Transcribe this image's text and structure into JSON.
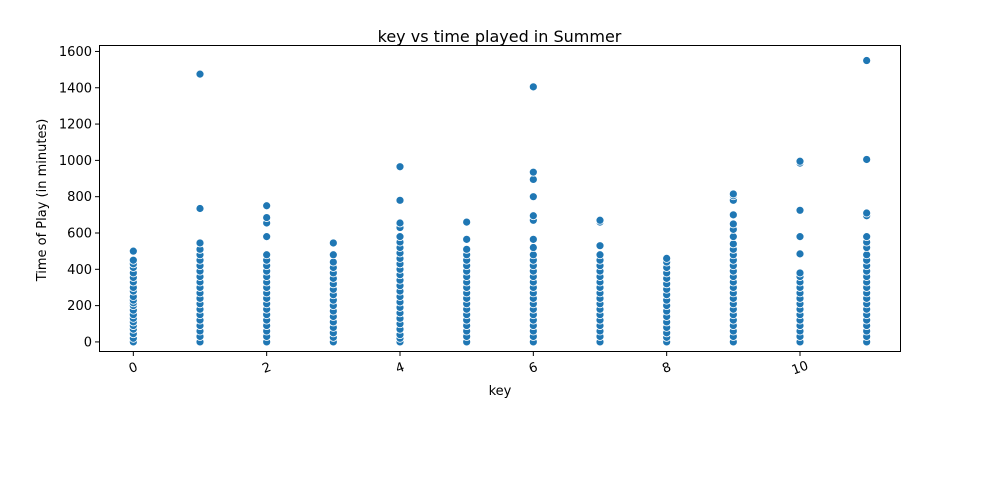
{
  "chart_data": {
    "type": "scatter",
    "title": "key vs time played in Summer",
    "xlabel": "key",
    "ylabel": "Time of Play (in minutes)",
    "xlim": [
      -0.5,
      11.5
    ],
    "ylim": [
      -50,
      1630
    ],
    "xticks": [
      0,
      2,
      4,
      6,
      8,
      10
    ],
    "yticks": [
      0,
      200,
      400,
      600,
      800,
      1000,
      1200,
      1400,
      1600
    ],
    "grid": false,
    "legend": "none",
    "marker_color": "#1f77b4",
    "points": [
      {
        "x": 0,
        "y": 0
      },
      {
        "x": 0,
        "y": 20
      },
      {
        "x": 0,
        "y": 45
      },
      {
        "x": 0,
        "y": 70
      },
      {
        "x": 0,
        "y": 90
      },
      {
        "x": 0,
        "y": 110
      },
      {
        "x": 0,
        "y": 130
      },
      {
        "x": 0,
        "y": 150
      },
      {
        "x": 0,
        "y": 175
      },
      {
        "x": 0,
        "y": 200
      },
      {
        "x": 0,
        "y": 215
      },
      {
        "x": 0,
        "y": 230
      },
      {
        "x": 0,
        "y": 250
      },
      {
        "x": 0,
        "y": 280
      },
      {
        "x": 0,
        "y": 300
      },
      {
        "x": 0,
        "y": 330
      },
      {
        "x": 0,
        "y": 355
      },
      {
        "x": 0,
        "y": 380
      },
      {
        "x": 0,
        "y": 410
      },
      {
        "x": 0,
        "y": 430
      },
      {
        "x": 0,
        "y": 450
      },
      {
        "x": 0,
        "y": 500
      },
      {
        "x": 1,
        "y": 0
      },
      {
        "x": 1,
        "y": 30
      },
      {
        "x": 1,
        "y": 60
      },
      {
        "x": 1,
        "y": 90
      },
      {
        "x": 1,
        "y": 120
      },
      {
        "x": 1,
        "y": 150
      },
      {
        "x": 1,
        "y": 180
      },
      {
        "x": 1,
        "y": 210
      },
      {
        "x": 1,
        "y": 240
      },
      {
        "x": 1,
        "y": 270
      },
      {
        "x": 1,
        "y": 300
      },
      {
        "x": 1,
        "y": 330
      },
      {
        "x": 1,
        "y": 360
      },
      {
        "x": 1,
        "y": 390
      },
      {
        "x": 1,
        "y": 420
      },
      {
        "x": 1,
        "y": 450
      },
      {
        "x": 1,
        "y": 480
      },
      {
        "x": 1,
        "y": 510
      },
      {
        "x": 1,
        "y": 545
      },
      {
        "x": 1,
        "y": 735
      },
      {
        "x": 1,
        "y": 1475
      },
      {
        "x": 2,
        "y": 0
      },
      {
        "x": 2,
        "y": 30
      },
      {
        "x": 2,
        "y": 60
      },
      {
        "x": 2,
        "y": 90
      },
      {
        "x": 2,
        "y": 120
      },
      {
        "x": 2,
        "y": 150
      },
      {
        "x": 2,
        "y": 180
      },
      {
        "x": 2,
        "y": 210
      },
      {
        "x": 2,
        "y": 240
      },
      {
        "x": 2,
        "y": 270
      },
      {
        "x": 2,
        "y": 300
      },
      {
        "x": 2,
        "y": 330
      },
      {
        "x": 2,
        "y": 360
      },
      {
        "x": 2,
        "y": 390
      },
      {
        "x": 2,
        "y": 420
      },
      {
        "x": 2,
        "y": 450
      },
      {
        "x": 2,
        "y": 480
      },
      {
        "x": 2,
        "y": 580
      },
      {
        "x": 2,
        "y": 655
      },
      {
        "x": 2,
        "y": 685
      },
      {
        "x": 2,
        "y": 750
      },
      {
        "x": 3,
        "y": 0
      },
      {
        "x": 3,
        "y": 25
      },
      {
        "x": 3,
        "y": 50
      },
      {
        "x": 3,
        "y": 80
      },
      {
        "x": 3,
        "y": 110
      },
      {
        "x": 3,
        "y": 140
      },
      {
        "x": 3,
        "y": 170
      },
      {
        "x": 3,
        "y": 200
      },
      {
        "x": 3,
        "y": 230
      },
      {
        "x": 3,
        "y": 260
      },
      {
        "x": 3,
        "y": 290
      },
      {
        "x": 3,
        "y": 320
      },
      {
        "x": 3,
        "y": 350
      },
      {
        "x": 3,
        "y": 380
      },
      {
        "x": 3,
        "y": 410
      },
      {
        "x": 3,
        "y": 440
      },
      {
        "x": 3,
        "y": 480
      },
      {
        "x": 3,
        "y": 545
      },
      {
        "x": 4,
        "y": 0
      },
      {
        "x": 4,
        "y": 20
      },
      {
        "x": 4,
        "y": 40
      },
      {
        "x": 4,
        "y": 70
      },
      {
        "x": 4,
        "y": 100
      },
      {
        "x": 4,
        "y": 130
      },
      {
        "x": 4,
        "y": 160
      },
      {
        "x": 4,
        "y": 190
      },
      {
        "x": 4,
        "y": 220
      },
      {
        "x": 4,
        "y": 250
      },
      {
        "x": 4,
        "y": 280
      },
      {
        "x": 4,
        "y": 310
      },
      {
        "x": 4,
        "y": 340
      },
      {
        "x": 4,
        "y": 370
      },
      {
        "x": 4,
        "y": 400
      },
      {
        "x": 4,
        "y": 430
      },
      {
        "x": 4,
        "y": 460
      },
      {
        "x": 4,
        "y": 490
      },
      {
        "x": 4,
        "y": 520
      },
      {
        "x": 4,
        "y": 550
      },
      {
        "x": 4,
        "y": 580
      },
      {
        "x": 4,
        "y": 630
      },
      {
        "x": 4,
        "y": 655
      },
      {
        "x": 4,
        "y": 780
      },
      {
        "x": 4,
        "y": 965
      },
      {
        "x": 5,
        "y": 0
      },
      {
        "x": 5,
        "y": 30
      },
      {
        "x": 5,
        "y": 60
      },
      {
        "x": 5,
        "y": 90
      },
      {
        "x": 5,
        "y": 120
      },
      {
        "x": 5,
        "y": 150
      },
      {
        "x": 5,
        "y": 180
      },
      {
        "x": 5,
        "y": 210
      },
      {
        "x": 5,
        "y": 240
      },
      {
        "x": 5,
        "y": 270
      },
      {
        "x": 5,
        "y": 300
      },
      {
        "x": 5,
        "y": 330
      },
      {
        "x": 5,
        "y": 360
      },
      {
        "x": 5,
        "y": 390
      },
      {
        "x": 5,
        "y": 420
      },
      {
        "x": 5,
        "y": 450
      },
      {
        "x": 5,
        "y": 480
      },
      {
        "x": 5,
        "y": 510
      },
      {
        "x": 5,
        "y": 565
      },
      {
        "x": 5,
        "y": 660
      },
      {
        "x": 6,
        "y": 0
      },
      {
        "x": 6,
        "y": 30
      },
      {
        "x": 6,
        "y": 60
      },
      {
        "x": 6,
        "y": 90
      },
      {
        "x": 6,
        "y": 120
      },
      {
        "x": 6,
        "y": 150
      },
      {
        "x": 6,
        "y": 180
      },
      {
        "x": 6,
        "y": 210
      },
      {
        "x": 6,
        "y": 240
      },
      {
        "x": 6,
        "y": 270
      },
      {
        "x": 6,
        "y": 300
      },
      {
        "x": 6,
        "y": 330
      },
      {
        "x": 6,
        "y": 360
      },
      {
        "x": 6,
        "y": 390
      },
      {
        "x": 6,
        "y": 420
      },
      {
        "x": 6,
        "y": 450
      },
      {
        "x": 6,
        "y": 480
      },
      {
        "x": 6,
        "y": 520
      },
      {
        "x": 6,
        "y": 565
      },
      {
        "x": 6,
        "y": 670
      },
      {
        "x": 6,
        "y": 695
      },
      {
        "x": 6,
        "y": 800
      },
      {
        "x": 6,
        "y": 895
      },
      {
        "x": 6,
        "y": 935
      },
      {
        "x": 6,
        "y": 1405
      },
      {
        "x": 7,
        "y": 0
      },
      {
        "x": 7,
        "y": 30
      },
      {
        "x": 7,
        "y": 60
      },
      {
        "x": 7,
        "y": 90
      },
      {
        "x": 7,
        "y": 120
      },
      {
        "x": 7,
        "y": 150
      },
      {
        "x": 7,
        "y": 180
      },
      {
        "x": 7,
        "y": 210
      },
      {
        "x": 7,
        "y": 240
      },
      {
        "x": 7,
        "y": 270
      },
      {
        "x": 7,
        "y": 300
      },
      {
        "x": 7,
        "y": 330
      },
      {
        "x": 7,
        "y": 360
      },
      {
        "x": 7,
        "y": 390
      },
      {
        "x": 7,
        "y": 420
      },
      {
        "x": 7,
        "y": 450
      },
      {
        "x": 7,
        "y": 480
      },
      {
        "x": 7,
        "y": 530
      },
      {
        "x": 7,
        "y": 660
      },
      {
        "x": 7,
        "y": 670
      },
      {
        "x": 8,
        "y": 0
      },
      {
        "x": 8,
        "y": 25
      },
      {
        "x": 8,
        "y": 50
      },
      {
        "x": 8,
        "y": 80
      },
      {
        "x": 8,
        "y": 110
      },
      {
        "x": 8,
        "y": 140
      },
      {
        "x": 8,
        "y": 170
      },
      {
        "x": 8,
        "y": 200
      },
      {
        "x": 8,
        "y": 230
      },
      {
        "x": 8,
        "y": 260
      },
      {
        "x": 8,
        "y": 290
      },
      {
        "x": 8,
        "y": 320
      },
      {
        "x": 8,
        "y": 350
      },
      {
        "x": 8,
        "y": 380
      },
      {
        "x": 8,
        "y": 410
      },
      {
        "x": 8,
        "y": 440
      },
      {
        "x": 8,
        "y": 460
      },
      {
        "x": 9,
        "y": 0
      },
      {
        "x": 9,
        "y": 30
      },
      {
        "x": 9,
        "y": 60
      },
      {
        "x": 9,
        "y": 90
      },
      {
        "x": 9,
        "y": 120
      },
      {
        "x": 9,
        "y": 150
      },
      {
        "x": 9,
        "y": 180
      },
      {
        "x": 9,
        "y": 210
      },
      {
        "x": 9,
        "y": 240
      },
      {
        "x": 9,
        "y": 270
      },
      {
        "x": 9,
        "y": 300
      },
      {
        "x": 9,
        "y": 330
      },
      {
        "x": 9,
        "y": 360
      },
      {
        "x": 9,
        "y": 390
      },
      {
        "x": 9,
        "y": 420
      },
      {
        "x": 9,
        "y": 450
      },
      {
        "x": 9,
        "y": 480
      },
      {
        "x": 9,
        "y": 510
      },
      {
        "x": 9,
        "y": 540
      },
      {
        "x": 9,
        "y": 580
      },
      {
        "x": 9,
        "y": 620
      },
      {
        "x": 9,
        "y": 650
      },
      {
        "x": 9,
        "y": 700
      },
      {
        "x": 9,
        "y": 780
      },
      {
        "x": 9,
        "y": 805
      },
      {
        "x": 9,
        "y": 815
      },
      {
        "x": 10,
        "y": 0
      },
      {
        "x": 10,
        "y": 30
      },
      {
        "x": 10,
        "y": 60
      },
      {
        "x": 10,
        "y": 90
      },
      {
        "x": 10,
        "y": 120
      },
      {
        "x": 10,
        "y": 150
      },
      {
        "x": 10,
        "y": 180
      },
      {
        "x": 10,
        "y": 210
      },
      {
        "x": 10,
        "y": 240
      },
      {
        "x": 10,
        "y": 270
      },
      {
        "x": 10,
        "y": 300
      },
      {
        "x": 10,
        "y": 330
      },
      {
        "x": 10,
        "y": 360
      },
      {
        "x": 10,
        "y": 380
      },
      {
        "x": 10,
        "y": 485
      },
      {
        "x": 10,
        "y": 580
      },
      {
        "x": 10,
        "y": 725
      },
      {
        "x": 10,
        "y": 985
      },
      {
        "x": 10,
        "y": 995
      },
      {
        "x": 11,
        "y": 0
      },
      {
        "x": 11,
        "y": 30
      },
      {
        "x": 11,
        "y": 60
      },
      {
        "x": 11,
        "y": 90
      },
      {
        "x": 11,
        "y": 120
      },
      {
        "x": 11,
        "y": 150
      },
      {
        "x": 11,
        "y": 180
      },
      {
        "x": 11,
        "y": 210
      },
      {
        "x": 11,
        "y": 240
      },
      {
        "x": 11,
        "y": 270
      },
      {
        "x": 11,
        "y": 300
      },
      {
        "x": 11,
        "y": 330
      },
      {
        "x": 11,
        "y": 360
      },
      {
        "x": 11,
        "y": 390
      },
      {
        "x": 11,
        "y": 420
      },
      {
        "x": 11,
        "y": 450
      },
      {
        "x": 11,
        "y": 480
      },
      {
        "x": 11,
        "y": 520
      },
      {
        "x": 11,
        "y": 550
      },
      {
        "x": 11,
        "y": 580
      },
      {
        "x": 11,
        "y": 695
      },
      {
        "x": 11,
        "y": 710
      },
      {
        "x": 11,
        "y": 1005
      },
      {
        "x": 11,
        "y": 1550
      }
    ]
  }
}
